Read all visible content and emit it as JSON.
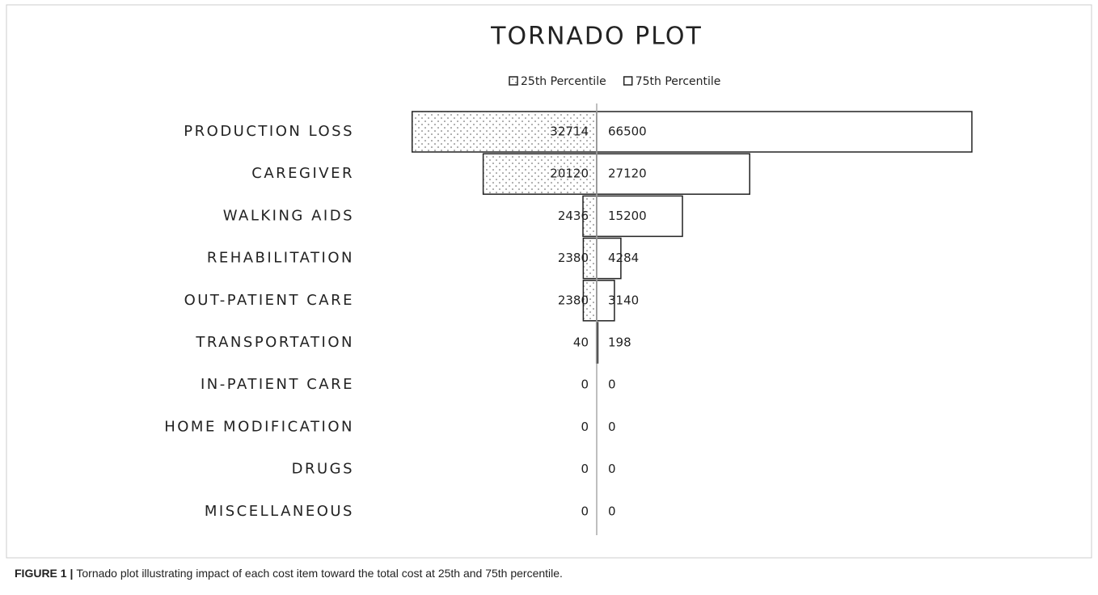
{
  "chart_data": {
    "type": "tornado",
    "title": "TORNADO PLOT",
    "categories": [
      "PRODUCTION LOSS",
      "CAREGIVER",
      "WALKING AIDS",
      "REHABILITATION",
      "OUT-PATIENT CARE",
      "TRANSPORTATION",
      "IN-PATIENT CARE",
      "HOME MODIFICATION",
      "DRUGS",
      "MISCELLANEOUS"
    ],
    "series": [
      {
        "name": "25th Percentile",
        "color": "#ffffff",
        "pattern": "dots",
        "side": "left",
        "values": [
          32714,
          20120,
          2436,
          2380,
          2380,
          40,
          0,
          0,
          0,
          0
        ]
      },
      {
        "name": "75th Percentile",
        "color": "#ffffff",
        "side": "right",
        "values": [
          66500,
          27120,
          15200,
          4284,
          3140,
          198,
          0,
          0,
          0,
          0
        ]
      }
    ],
    "legend": "top",
    "caption": {
      "label": "FIGURE 1 |",
      "text": "Tornado plot illustrating impact of each cost item toward the total cost at 25th and 75th percentile."
    }
  }
}
